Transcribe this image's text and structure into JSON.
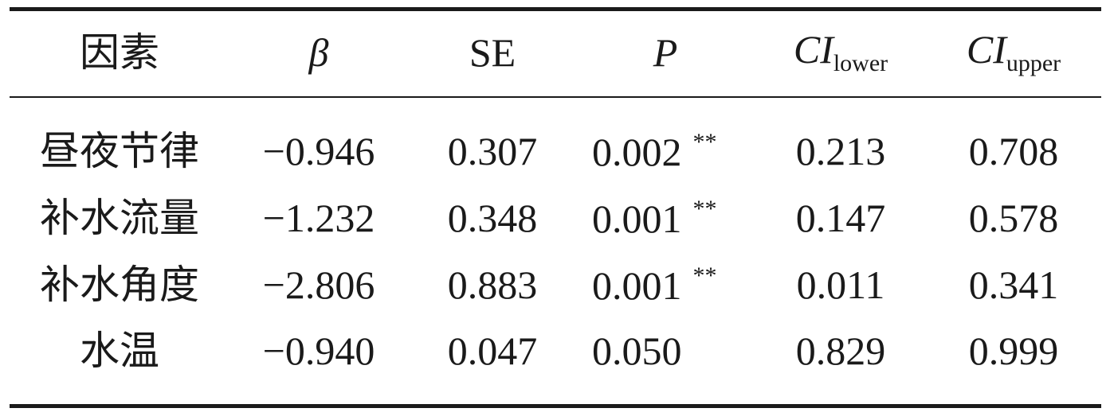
{
  "table": {
    "header": [
      {
        "text": "因素"
      },
      {
        "text": "β"
      },
      {
        "text": "SE"
      },
      {
        "text": "P"
      },
      {
        "text": "CI",
        "sub": "lower"
      },
      {
        "text": "CI",
        "sub": "upper"
      }
    ],
    "rows": [
      {
        "factor": "昼夜节律",
        "beta": "−0.946",
        "se": "0.307",
        "p": "0.002",
        "sig": "**",
        "ci_lower": "0.213",
        "ci_upper": "0.708"
      },
      {
        "factor": "补水流量",
        "beta": "−1.232",
        "se": "0.348",
        "p": "0.001",
        "sig": "**",
        "ci_lower": "0.147",
        "ci_upper": "0.578"
      },
      {
        "factor": "补水角度",
        "beta": "−2.806",
        "se": "0.883",
        "p": "0.001",
        "sig": "**",
        "ci_lower": "0.011",
        "ci_upper": "0.341"
      },
      {
        "factor": "水温",
        "beta": "−0.940",
        "se": "0.047",
        "p": "0.050",
        "ci_lower": "0.829",
        "ci_upper": "0.999"
      }
    ]
  }
}
